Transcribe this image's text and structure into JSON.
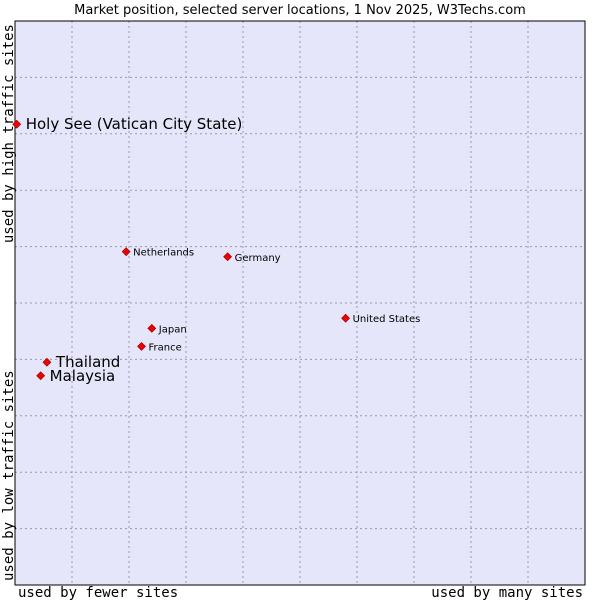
{
  "chart_data": {
    "type": "scatter",
    "title": "Market position, selected server locations, 1 Nov 2025, W3Techs.com",
    "xlabel_left": "used by fewer sites",
    "xlabel_right": "used by many sites",
    "ylabel_bottom": "used by low traffic sites",
    "ylabel_top": "used by high traffic sites",
    "xlim": [
      0,
      100
    ],
    "ylim": [
      0,
      100
    ],
    "grid": true,
    "background_color": "#e6e6fa",
    "grid_color": "#9999aa",
    "point_color": "#ee0000",
    "points": [
      {
        "label": "Holy See (Vatican City State)",
        "x": 0.3,
        "y": 81.7,
        "emphasis": true
      },
      {
        "label": "Netherlands",
        "x": 19.5,
        "y": 59.1,
        "emphasis": false
      },
      {
        "label": "Germany",
        "x": 37.3,
        "y": 58.2,
        "emphasis": false
      },
      {
        "label": "United States",
        "x": 58.0,
        "y": 47.3,
        "emphasis": false
      },
      {
        "label": "Japan",
        "x": 24.0,
        "y": 45.5,
        "emphasis": false
      },
      {
        "label": "France",
        "x": 22.2,
        "y": 42.3,
        "emphasis": false
      },
      {
        "label": "Thailand",
        "x": 5.6,
        "y": 39.5,
        "emphasis": true
      },
      {
        "label": "Malaysia",
        "x": 4.5,
        "y": 37.1,
        "emphasis": true
      }
    ]
  }
}
